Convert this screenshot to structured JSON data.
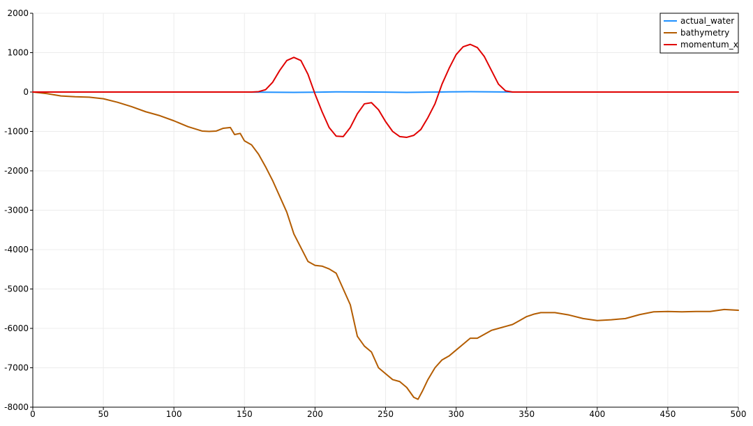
{
  "chart_data": {
    "type": "line",
    "title": "",
    "xlabel": "",
    "ylabel": "",
    "xlim": [
      0,
      500
    ],
    "ylim": [
      -8000,
      2000
    ],
    "x_ticks": [
      0,
      50,
      100,
      150,
      200,
      250,
      300,
      350,
      400,
      450,
      500
    ],
    "y_ticks": [
      2000,
      1000,
      0,
      -1000,
      -2000,
      -3000,
      -4000,
      -5000,
      -6000,
      -7000,
      -8000
    ],
    "x_tick_labels": [
      "0",
      "50",
      "100",
      "150",
      "200",
      "250",
      "300",
      "350",
      "400",
      "450",
      "500"
    ],
    "y_tick_labels": [
      "2000",
      "1000",
      "0",
      "-1000",
      "-2000",
      "-3000",
      "-4000",
      "-5000",
      "-6000",
      "-7000",
      "-8000"
    ],
    "grid": true,
    "legend_position": "top-right",
    "series": [
      {
        "name": "actual_water",
        "color": "#1e90ff",
        "points": [
          [
            0,
            0
          ],
          [
            150,
            0
          ],
          [
            165,
            -5
          ],
          [
            185,
            -10
          ],
          [
            200,
            -5
          ],
          [
            215,
            5
          ],
          [
            230,
            3
          ],
          [
            250,
            -3
          ],
          [
            265,
            -8
          ],
          [
            280,
            -3
          ],
          [
            295,
            5
          ],
          [
            310,
            8
          ],
          [
            325,
            5
          ],
          [
            340,
            0
          ],
          [
            500,
            0
          ]
        ]
      },
      {
        "name": "bathymetry",
        "color": "#b35c00",
        "points": [
          [
            0,
            0
          ],
          [
            10,
            -40
          ],
          [
            20,
            -100
          ],
          [
            30,
            -120
          ],
          [
            40,
            -130
          ],
          [
            50,
            -170
          ],
          [
            60,
            -260
          ],
          [
            70,
            -370
          ],
          [
            80,
            -500
          ],
          [
            90,
            -600
          ],
          [
            100,
            -730
          ],
          [
            110,
            -880
          ],
          [
            120,
            -990
          ],
          [
            125,
            -1000
          ],
          [
            130,
            -990
          ],
          [
            135,
            -920
          ],
          [
            140,
            -900
          ],
          [
            143,
            -1080
          ],
          [
            147,
            -1050
          ],
          [
            150,
            -1240
          ],
          [
            155,
            -1340
          ],
          [
            160,
            -1580
          ],
          [
            165,
            -1900
          ],
          [
            170,
            -2250
          ],
          [
            175,
            -2650
          ],
          [
            180,
            -3050
          ],
          [
            185,
            -3600
          ],
          [
            190,
            -3950
          ],
          [
            195,
            -4300
          ],
          [
            200,
            -4400
          ],
          [
            205,
            -4420
          ],
          [
            210,
            -4490
          ],
          [
            215,
            -4600
          ],
          [
            220,
            -5000
          ],
          [
            225,
            -5400
          ],
          [
            230,
            -6200
          ],
          [
            235,
            -6450
          ],
          [
            240,
            -6600
          ],
          [
            245,
            -7000
          ],
          [
            250,
            -7150
          ],
          [
            255,
            -7300
          ],
          [
            260,
            -7350
          ],
          [
            265,
            -7500
          ],
          [
            270,
            -7750
          ],
          [
            273,
            -7800
          ],
          [
            276,
            -7600
          ],
          [
            280,
            -7300
          ],
          [
            285,
            -7000
          ],
          [
            290,
            -6800
          ],
          [
            295,
            -6700
          ],
          [
            300,
            -6550
          ],
          [
            305,
            -6400
          ],
          [
            310,
            -6250
          ],
          [
            315,
            -6250
          ],
          [
            320,
            -6150
          ],
          [
            325,
            -6050
          ],
          [
            330,
            -6000
          ],
          [
            335,
            -5950
          ],
          [
            340,
            -5900
          ],
          [
            345,
            -5800
          ],
          [
            350,
            -5700
          ],
          [
            355,
            -5640
          ],
          [
            360,
            -5600
          ],
          [
            370,
            -5600
          ],
          [
            380,
            -5660
          ],
          [
            390,
            -5750
          ],
          [
            400,
            -5800
          ],
          [
            410,
            -5780
          ],
          [
            420,
            -5750
          ],
          [
            430,
            -5650
          ],
          [
            440,
            -5580
          ],
          [
            450,
            -5570
          ],
          [
            460,
            -5580
          ],
          [
            470,
            -5570
          ],
          [
            480,
            -5570
          ],
          [
            490,
            -5520
          ],
          [
            500,
            -5540
          ]
        ]
      },
      {
        "name": "momentum_x",
        "color": "#e00000",
        "points": [
          [
            0,
            0
          ],
          [
            155,
            0
          ],
          [
            160,
            10
          ],
          [
            165,
            60
          ],
          [
            170,
            250
          ],
          [
            175,
            550
          ],
          [
            180,
            800
          ],
          [
            185,
            880
          ],
          [
            190,
            800
          ],
          [
            195,
            450
          ],
          [
            200,
            -50
          ],
          [
            205,
            -500
          ],
          [
            210,
            -900
          ],
          [
            215,
            -1120
          ],
          [
            220,
            -1130
          ],
          [
            225,
            -900
          ],
          [
            230,
            -550
          ],
          [
            235,
            -300
          ],
          [
            240,
            -270
          ],
          [
            245,
            -450
          ],
          [
            250,
            -750
          ],
          [
            255,
            -1000
          ],
          [
            260,
            -1130
          ],
          [
            265,
            -1150
          ],
          [
            270,
            -1100
          ],
          [
            275,
            -950
          ],
          [
            280,
            -650
          ],
          [
            285,
            -300
          ],
          [
            290,
            200
          ],
          [
            295,
            600
          ],
          [
            300,
            950
          ],
          [
            305,
            1150
          ],
          [
            310,
            1210
          ],
          [
            315,
            1130
          ],
          [
            320,
            900
          ],
          [
            325,
            550
          ],
          [
            330,
            200
          ],
          [
            335,
            30
          ],
          [
            340,
            0
          ],
          [
            500,
            0
          ]
        ]
      }
    ]
  }
}
